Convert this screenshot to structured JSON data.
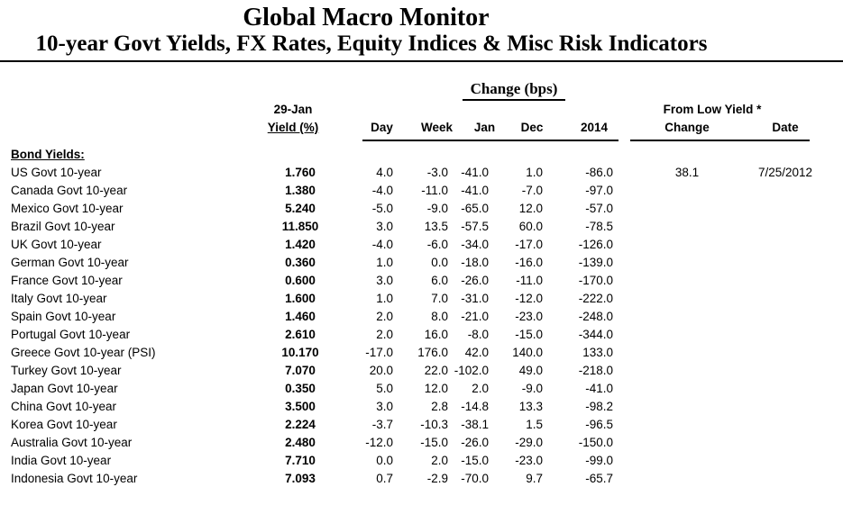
{
  "header": {
    "title": "Global Macro Monitor",
    "subtitle": "10-year Govt Yields, FX Rates, Equity Indices & Misc Risk Indicators"
  },
  "table": {
    "group_header": "Change (bps)",
    "asof_date_label": "29-Jan",
    "yield_label": "Yield (%)",
    "from_low_label": "From Low Yield *",
    "bps_columns": [
      "Day",
      "Week",
      "Jan",
      "Dec",
      "2014"
    ],
    "low_columns": [
      "Change",
      "Date"
    ],
    "section_label": "Bond Yields:",
    "rows": [
      {
        "name": "US Govt 10-year",
        "yield": "1.760",
        "day": "4.0",
        "week": "-3.0",
        "jan": "-41.0",
        "dec": "1.0",
        "y2014": "-86.0",
        "low_change": "38.1",
        "low_date": "7/25/2012"
      },
      {
        "name": "Canada Govt 10-year",
        "yield": "1.380",
        "day": "-4.0",
        "week": "-11.0",
        "jan": "-41.0",
        "dec": "-7.0",
        "y2014": "-97.0",
        "low_change": "",
        "low_date": ""
      },
      {
        "name": "Mexico Govt 10-year",
        "yield": "5.240",
        "day": "-5.0",
        "week": "-9.0",
        "jan": "-65.0",
        "dec": "12.0",
        "y2014": "-57.0",
        "low_change": "",
        "low_date": ""
      },
      {
        "name": "Brazil Govt 10-year",
        "yield": "11.850",
        "day": "3.0",
        "week": "13.5",
        "jan": "-57.5",
        "dec": "60.0",
        "y2014": "-78.5",
        "low_change": "",
        "low_date": ""
      },
      {
        "name": "UK Govt 10-year",
        "yield": "1.420",
        "day": "-4.0",
        "week": "-6.0",
        "jan": "-34.0",
        "dec": "-17.0",
        "y2014": "-126.0",
        "low_change": "",
        "low_date": ""
      },
      {
        "name": "German Govt 10-year",
        "yield": "0.360",
        "day": "1.0",
        "week": "0.0",
        "jan": "-18.0",
        "dec": "-16.0",
        "y2014": "-139.0",
        "low_change": "",
        "low_date": ""
      },
      {
        "name": "France Govt 10-year",
        "yield": "0.600",
        "day": "3.0",
        "week": "6.0",
        "jan": "-26.0",
        "dec": "-11.0",
        "y2014": "-170.0",
        "low_change": "",
        "low_date": ""
      },
      {
        "name": "Italy Govt 10-year",
        "yield": "1.600",
        "day": "1.0",
        "week": "7.0",
        "jan": "-31.0",
        "dec": "-12.0",
        "y2014": "-222.0",
        "low_change": "",
        "low_date": ""
      },
      {
        "name": "Spain Govt 10-year",
        "yield": "1.460",
        "day": "2.0",
        "week": "8.0",
        "jan": "-21.0",
        "dec": "-23.0",
        "y2014": "-248.0",
        "low_change": "",
        "low_date": ""
      },
      {
        "name": "Portugal Govt 10-year",
        "yield": "2.610",
        "day": "2.0",
        "week": "16.0",
        "jan": "-8.0",
        "dec": "-15.0",
        "y2014": "-344.0",
        "low_change": "",
        "low_date": ""
      },
      {
        "name": "Greece Govt 10-year (PSI)",
        "yield": "10.170",
        "day": "-17.0",
        "week": "176.0",
        "jan": "42.0",
        "dec": "140.0",
        "y2014": "133.0",
        "low_change": "",
        "low_date": ""
      },
      {
        "name": "Turkey Govt 10-year",
        "yield": "7.070",
        "day": "20.0",
        "week": "22.0",
        "jan": "-102.0",
        "dec": "49.0",
        "y2014": "-218.0",
        "low_change": "",
        "low_date": ""
      },
      {
        "name": "Japan Govt 10-year",
        "yield": "0.350",
        "day": "5.0",
        "week": "12.0",
        "jan": "2.0",
        "dec": "-9.0",
        "y2014": "-41.0",
        "low_change": "",
        "low_date": ""
      },
      {
        "name": "China Govt 10-year",
        "yield": "3.500",
        "day": "3.0",
        "week": "2.8",
        "jan": "-14.8",
        "dec": "13.3",
        "y2014": "-98.2",
        "low_change": "",
        "low_date": ""
      },
      {
        "name": "Korea Govt 10-year",
        "yield": "2.224",
        "day": "-3.7",
        "week": "-10.3",
        "jan": "-38.1",
        "dec": "1.5",
        "y2014": "-96.5",
        "low_change": "",
        "low_date": ""
      },
      {
        "name": "Australia Govt 10-year",
        "yield": "2.480",
        "day": "-12.0",
        "week": "-15.0",
        "jan": "-26.0",
        "dec": "-29.0",
        "y2014": "-150.0",
        "low_change": "",
        "low_date": ""
      },
      {
        "name": "India Govt 10-year",
        "yield": "7.710",
        "day": "0.0",
        "week": "2.0",
        "jan": "-15.0",
        "dec": "-23.0",
        "y2014": "-99.0",
        "low_change": "",
        "low_date": ""
      },
      {
        "name": "Indonesia Govt 10-year",
        "yield": "7.093",
        "day": "0.7",
        "week": "-2.9",
        "jan": "-70.0",
        "dec": "9.7",
        "y2014": "-65.7",
        "low_change": "",
        "low_date": ""
      }
    ]
  }
}
